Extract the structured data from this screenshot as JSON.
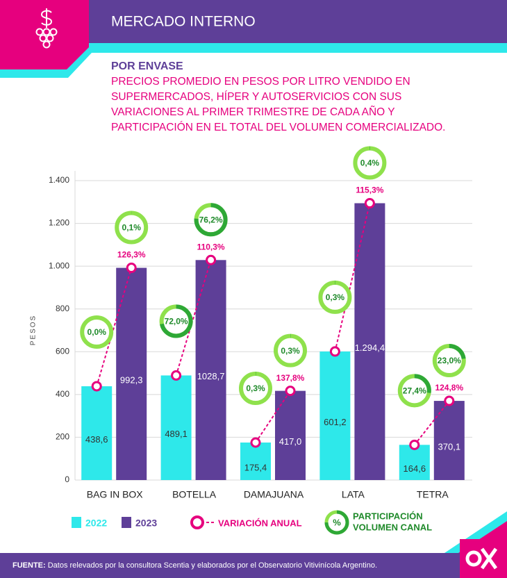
{
  "header": {
    "title": "MERCADO INTERNO"
  },
  "subtitle": "POR ENVASE",
  "description": [
    "PRECIOS PROMEDIO EN PESOS POR LITRO VENDIDO EN",
    "SUPERMERCADOS, HÍPER Y AUTOSERVICIOS CON SUS",
    "VARIACIONES AL PRIMER TRIMESTRE DE CADA AÑO Y",
    "PARTICIPACIÓN EN EL TOTAL DEL VOLUMEN COMERCIALIZADO."
  ],
  "chart_data": {
    "type": "bar",
    "y_label": "PESOS",
    "categories": [
      "BAG IN BOX",
      "BOTELLA",
      "DAMAJUANA",
      "LATA",
      "TETRA"
    ],
    "series": [
      {
        "name": "2022",
        "color": "#2ee8ea",
        "values": [
          438.6,
          489.1,
          175.4,
          601.2,
          164.6
        ],
        "value_labels": [
          "438,6",
          "489,1",
          "175,4",
          "601,2",
          "164,6"
        ]
      },
      {
        "name": "2023",
        "color": "#5e3f98",
        "values": [
          992.3,
          1028.7,
          417.0,
          1294.4,
          370.1
        ],
        "value_labels": [
          "992,3",
          "1028,7",
          "417,0",
          "1.294,4",
          "370,1"
        ]
      }
    ],
    "variation": {
      "name": "VARIACIÓN ANUAL",
      "color": "#e6007e",
      "values": [
        126.3,
        110.3,
        137.8,
        115.3,
        124.8
      ],
      "value_labels": [
        "126,3%",
        "110,3%",
        "137,8%",
        "115,3%",
        "124,8%"
      ]
    },
    "participation": {
      "name": [
        "PARTICIPACIÓN",
        "VOLUMEN CANAL"
      ],
      "symbol": "%",
      "color": "#2ea836",
      "series": [
        {
          "values": [
            0.0,
            72.0,
            0.3,
            0.3,
            27.4
          ],
          "value_labels": [
            "0,0%",
            "72,0%",
            "0,3%",
            "0,3%",
            "27,4%"
          ]
        },
        {
          "values": [
            0.1,
            76.2,
            0.3,
            0.4,
            23.0
          ],
          "value_labels": [
            "0,1%",
            "76,2%",
            "0,3%",
            "0,4%",
            "23,0%"
          ]
        }
      ]
    },
    "ylim": [
      0,
      1400
    ],
    "yticks": [
      0,
      200,
      400,
      600,
      800,
      {
        "value": 1000,
        "label": "1.000"
      },
      {
        "value": 1200,
        "label": "1.200"
      },
      {
        "value": 1400,
        "label": "1.400"
      }
    ],
    "grid": true
  },
  "source": {
    "label": "FUENTE:",
    "text": " Datos relevados por la consultora Scentia y elaborados por el Observatorio Vitivinícola Argentino."
  }
}
